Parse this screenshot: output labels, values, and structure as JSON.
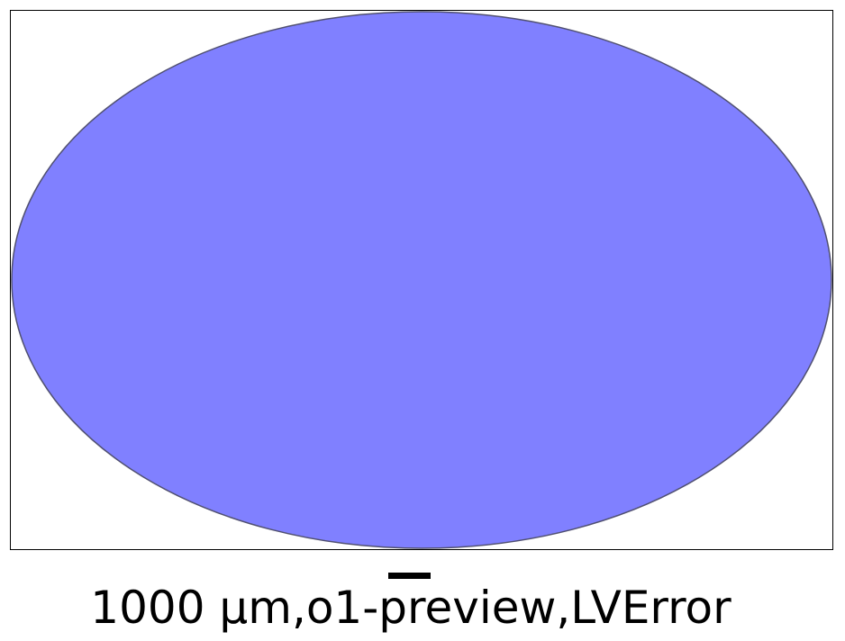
{
  "figure": {
    "caption": "1000 µm,o1-preview,LVError",
    "ellipse_fill": "#8080ff",
    "ellipse_stroke": "#505070",
    "frame_color": "#000000",
    "scale_bar_color": "#000000"
  }
}
